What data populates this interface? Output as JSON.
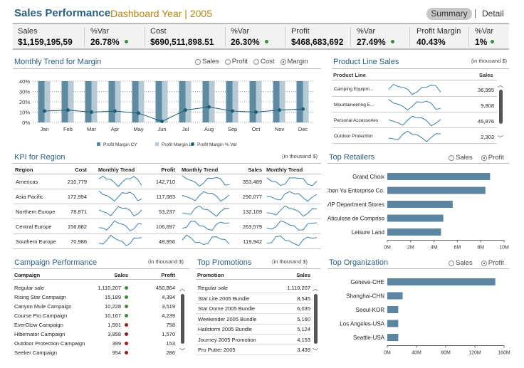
{
  "header": {
    "title": "Sales Performance",
    "subtitle": "Dashboard Year | 2005",
    "tab_summary": "Summary",
    "tab_detail": "Detail"
  },
  "kpis": [
    {
      "label": "Sales",
      "value": "$1,159,195,59"
    },
    {
      "label": "%Var",
      "value": "26.78%",
      "status": "#3a8a3a"
    },
    {
      "label": "Cost",
      "value": "$690,511,898.51"
    },
    {
      "label": "%Var",
      "value": "26.30%",
      "status": "#3a8a3a"
    },
    {
      "label": "Profit",
      "value": "$468,683,692"
    },
    {
      "label": "%Var",
      "value": "27.49%",
      "status": "#3a8a3a"
    },
    {
      "label": "Profit Margin",
      "value": "40.43%"
    },
    {
      "label": "%Var",
      "value": "1%",
      "status": "#3a8a3a"
    }
  ],
  "monthly": {
    "title": "Monthly Trend for Margin",
    "options": [
      "Sales",
      "Profit",
      "Cost",
      "Margin"
    ],
    "selected": "Margin",
    "legend": [
      "Profit Margin CY",
      "Profit Margin LY",
      "Profit Margin % Var"
    ]
  },
  "chart_data": [
    {
      "type": "bar",
      "title": "Monthly Trend for Margin",
      "categories": [
        "Jan",
        "Feb",
        "Mar",
        "Apr",
        "May",
        "Jun",
        "Jul",
        "Aug",
        "Sep",
        "Oct",
        "Nov",
        "Dec"
      ],
      "yticks": [
        "40%",
        "30%",
        "20%",
        "10%",
        "0%"
      ],
      "ylim": [
        0,
        40
      ],
      "series": [
        {
          "name": "Profit Margin CY",
          "values": [
            40,
            40,
            40,
            40,
            40,
            40,
            40,
            40,
            40,
            40,
            40,
            40
          ]
        },
        {
          "name": "Profit Margin LY",
          "values": [
            40,
            40,
            40,
            40,
            40,
            40,
            40,
            40,
            40,
            40,
            40,
            40
          ]
        },
        {
          "name": "Profit Margin % Var",
          "values": [
            11,
            12,
            10,
            11,
            9,
            1,
            12,
            15,
            11,
            10,
            12,
            13
          ]
        }
      ]
    },
    {
      "type": "bar",
      "title": "Top Retailers",
      "categories": [
        "Grand Choix",
        "Chen Yu Enterprise Co.",
        "VIP Department Stores",
        "Aticulose de Compriso",
        "Leisure Land"
      ],
      "values": [
        8.8,
        8.4,
        5.6,
        4.8,
        4.6
      ],
      "xticks": [
        "0M",
        "2M",
        "4M",
        "6M",
        "8M",
        "10M"
      ],
      "xlim": [
        0,
        10
      ]
    },
    {
      "type": "bar",
      "title": "Top Organization",
      "categories": [
        "Geneve-CHE",
        "Shanghai-CHN",
        "Seoul-KOR",
        "Los Angeles-USA",
        "Seattle-USA"
      ],
      "values": [
        148,
        21,
        15,
        15,
        15
      ],
      "xticks": [
        "0M",
        "40M",
        "80M",
        "120M",
        "160M"
      ],
      "xlim": [
        0,
        160
      ]
    }
  ],
  "product": {
    "title": "Product Line Sales",
    "unit": "(in thousand $)",
    "col1": "Product Line",
    "col2": "Sales",
    "rows": [
      {
        "name": "Camping Equipm...",
        "sales": "36,995"
      },
      {
        "name": "Mountaineering E...",
        "sales": "9,808"
      },
      {
        "name": "Personal Accessories",
        "sales": "45,876"
      },
      {
        "name": "Outdoor Protection",
        "sales": "2,303"
      }
    ]
  },
  "kpiregion": {
    "title": "KPI for Region",
    "unit": "(in thousand $)",
    "headers": [
      "Region",
      "Cost",
      "Monthly Trend",
      "Profit",
      "Monthly Trend",
      "Sales",
      "Monthly Trend"
    ],
    "rows": [
      {
        "region": "Americas",
        "cost": "210,779",
        "profit": "142,710",
        "sales": "353,489"
      },
      {
        "region": "Asia Pacific",
        "cost": "172,994",
        "profit": "117,083",
        "sales": "290,077"
      },
      {
        "region": "Northern Europe",
        "cost": "78,871",
        "profit": "53,237",
        "sales": "132,109"
      },
      {
        "region": "Central Europe",
        "cost": "156,882",
        "profit": "106,697",
        "sales": "263,579"
      },
      {
        "region": "Southern Europe",
        "cost": "70,986",
        "profit": "48,956",
        "sales": "119,942"
      }
    ]
  },
  "retailers": {
    "title": "Top Retailers",
    "options": [
      "Sales",
      "Profit"
    ],
    "selected": "Profit"
  },
  "organization": {
    "title": "Top Organization",
    "options": [
      "Sales",
      "Profit"
    ],
    "selected": "Profit"
  },
  "campaign": {
    "title": "Campaign Performance",
    "unit": "(in thousand $)",
    "headers": [
      "Campaign",
      "Sales",
      "Profit"
    ],
    "rows": [
      {
        "name": "Regular sale",
        "sales": "1,110,207",
        "status": "#3a8a3a",
        "profit": "450,864"
      },
      {
        "name": "Rising Star Campaign",
        "sales": "15,189",
        "status": "#3a8a3a",
        "profit": "4,394"
      },
      {
        "name": "Canyon Mule Campaign",
        "sales": "10,228",
        "status": "#3a8a3a",
        "profit": "3,519"
      },
      {
        "name": "Course Pro Campaign",
        "sales": "10,167",
        "status": "#3a8a3a",
        "profit": "4,239"
      },
      {
        "name": "EverGlow Campaign",
        "sales": "1,591",
        "status": "#9a1a1a",
        "profit": "758"
      },
      {
        "name": "Hibernator Campaign",
        "sales": "3,858",
        "status": "#9a1a1a",
        "profit": "1,570"
      },
      {
        "name": "Outdoor Protection Campaign",
        "sales": "399",
        "status": "#9a1a1a",
        "profit": "153"
      },
      {
        "name": "Seeker Campaign",
        "sales": "954",
        "status": "#9a1a1a",
        "profit": "286"
      }
    ]
  },
  "promotions": {
    "title": "Top Promotions",
    "unit": "(in thousand $)",
    "headers": [
      "Promotion",
      "Sales"
    ],
    "rows": [
      {
        "name": "Regular sale",
        "sales": "1,110,207"
      },
      {
        "name": "Star Lite 2005 Bundle",
        "sales": "8,545"
      },
      {
        "name": "Star Dome 2005 Bundle",
        "sales": "6,035"
      },
      {
        "name": "Weekender 2005 Bundle",
        "sales": "5,160"
      },
      {
        "name": "Hailstorm 2005 Bundle",
        "sales": "5,124"
      },
      {
        "name": "Journey 2005 Promotion",
        "sales": "4,153"
      },
      {
        "name": "Pro Putter 2005",
        "sales": "3,439"
      }
    ]
  },
  "colors": {
    "accent": "#2a5f80",
    "bar_dark": "#5e8aa2",
    "bar_light": "#b6cad6",
    "bar_h": "#5b85a0",
    "good": "#3a8a3a",
    "bad": "#9a1a1a"
  }
}
